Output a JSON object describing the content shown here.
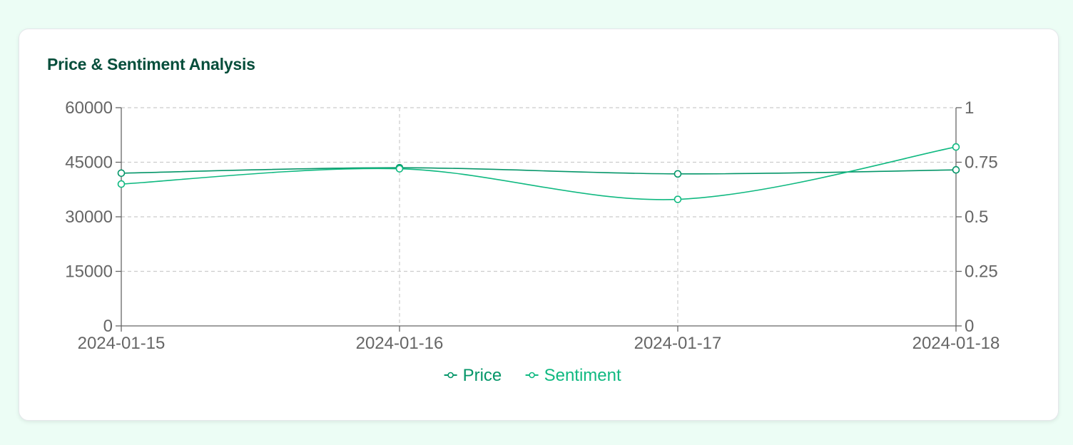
{
  "card": {
    "title": "Price & Sentiment Analysis"
  },
  "colors": {
    "page_background": "#ecfdf5",
    "card_background": "#ffffff",
    "title": "#064e3b",
    "price": "#059669",
    "sentiment": "#10b981",
    "grid": "#cccccc",
    "axis": "#666666"
  },
  "chart_data": {
    "type": "line",
    "title": "Price & Sentiment Analysis",
    "x": [
      "2024-01-15",
      "2024-01-16",
      "2024-01-17",
      "2024-01-18"
    ],
    "series": [
      {
        "name": "Price",
        "axis": "left",
        "values": [
          42000,
          43500,
          41800,
          42900
        ],
        "color": "#059669"
      },
      {
        "name": "Sentiment",
        "axis": "right",
        "values": [
          0.65,
          0.72,
          0.58,
          0.82
        ],
        "color": "#10b981"
      }
    ],
    "left_axis": {
      "ylim": [
        0,
        60000
      ],
      "ticks": [
        "0",
        "15000",
        "30000",
        "45000",
        "60000"
      ]
    },
    "right_axis": {
      "ylim": [
        0,
        1
      ],
      "ticks": [
        "0",
        "0.25",
        "0.5",
        "0.75",
        "1"
      ]
    },
    "grid": true,
    "grid_style": "dashed",
    "legend_position": "bottom-center"
  }
}
